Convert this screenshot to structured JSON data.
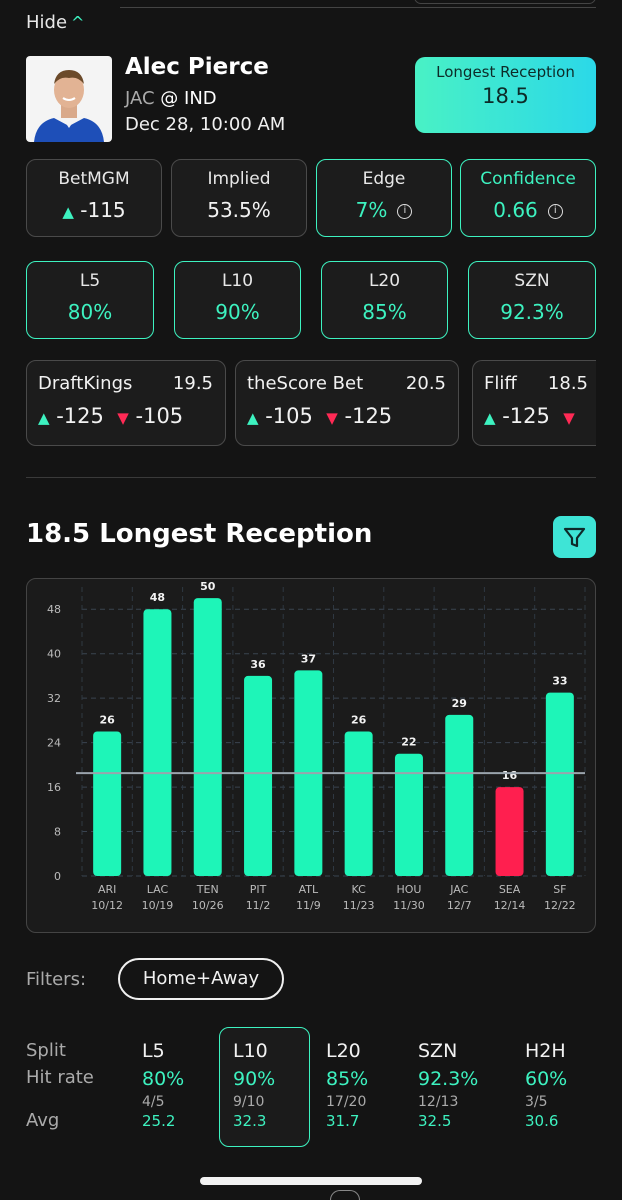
{
  "header": {
    "hide_label": "Hide",
    "hide_icon": "chevron-up-icon"
  },
  "player": {
    "name": "Alec Pierce",
    "away": "JAC",
    "at": "@",
    "home": "IND",
    "date": "Dec 28, 10:00 AM"
  },
  "prop": {
    "label": "Longest Reception",
    "line": "18.5"
  },
  "stats": {
    "betmgm": {
      "label": "BetMGM",
      "value": "-115"
    },
    "implied": {
      "label": "Implied",
      "value": "53.5%"
    },
    "edge": {
      "label": "Edge",
      "value": "7%"
    },
    "confidence": {
      "label": "Confidence",
      "value": "0.66"
    }
  },
  "hit_rates": [
    {
      "label": "L5",
      "value": "80%"
    },
    {
      "label": "L10",
      "value": "90%"
    },
    {
      "label": "L20",
      "value": "85%"
    },
    {
      "label": "SZN",
      "value": "92.3%"
    }
  ],
  "books": [
    {
      "name": "DraftKings",
      "line": "19.5",
      "over": "-125",
      "under": "-105"
    },
    {
      "name": "theScore Bet",
      "line": "20.5",
      "over": "-105",
      "under": "-125"
    },
    {
      "name": "Fliff",
      "line": "18.5",
      "over": "-125",
      "under": ""
    }
  ],
  "section_title": "18.5 Longest Reception",
  "chart_data": {
    "type": "bar",
    "categories": [
      "ARI",
      "LAC",
      "TEN",
      "PIT",
      "ATL",
      "KC",
      "HOU",
      "JAC",
      "SEA",
      "SF"
    ],
    "dates": [
      "10/12",
      "10/19",
      "10/26",
      "11/2",
      "11/9",
      "11/23",
      "11/30",
      "12/7",
      "12/14",
      "12/22"
    ],
    "values": [
      26,
      48,
      50,
      36,
      37,
      26,
      22,
      29,
      16,
      33
    ],
    "ylim": [
      0,
      52
    ],
    "yticks": [
      0,
      8,
      16,
      24,
      32,
      40,
      48
    ],
    "line": 18.5,
    "grid": true,
    "colors": {
      "over": "#1ef5b8",
      "under": "#ff1f4f",
      "line": "#9aa4ad"
    }
  },
  "filters": {
    "label": "Filters:",
    "selected": "Home+Away"
  },
  "splits": {
    "row_labels": {
      "split": "Split",
      "hit_rate": "Hit rate",
      "avg": "Avg"
    },
    "columns": [
      {
        "name": "L5",
        "rate": "80%",
        "frac": "4/5",
        "avg": "25.2"
      },
      {
        "name": "L10",
        "rate": "90%",
        "frac": "9/10",
        "avg": "32.3"
      },
      {
        "name": "L20",
        "rate": "85%",
        "frac": "17/20",
        "avg": "31.7"
      },
      {
        "name": "SZN",
        "rate": "92.3%",
        "frac": "12/13",
        "avg": "32.5"
      },
      {
        "name": "H2H",
        "rate": "60%",
        "frac": "3/5",
        "avg": "30.6"
      }
    ]
  },
  "colors": {
    "accent": "#3df2c0",
    "negative": "#ff2a55",
    "background": "#141414"
  }
}
